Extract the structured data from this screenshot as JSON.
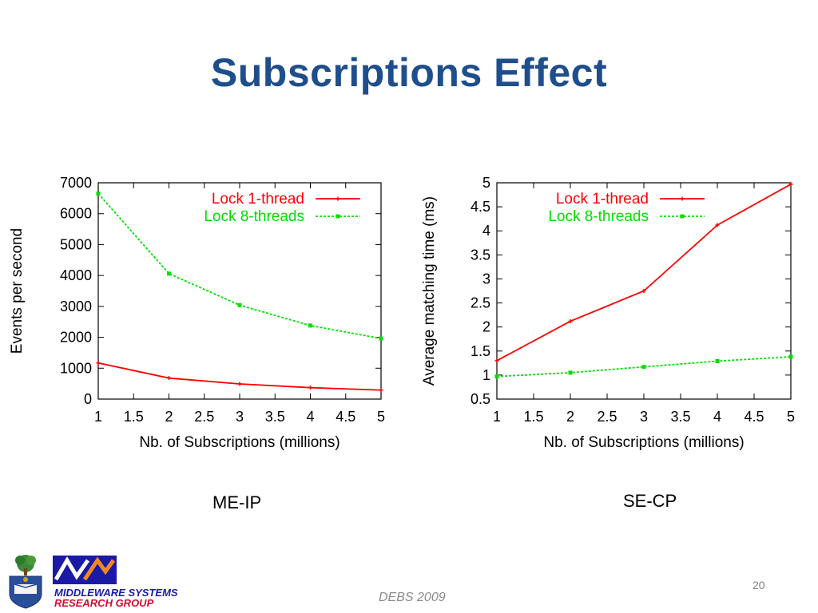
{
  "slide": {
    "title": "Subscriptions Effect",
    "caption_left": "ME-IP",
    "caption_right": "SE-CP",
    "footer": "DEBS 2009",
    "page_number": "20",
    "logo": {
      "line1": "MIDDLEWARE SYSTEMS",
      "line2": "RESEARCH GROUP"
    }
  },
  "colors": {
    "title": "#1f4e8c",
    "lock1": "#ff0000",
    "lock8": "#00e000"
  },
  "chart_data": [
    {
      "type": "line",
      "title": "",
      "xlabel": "Nb. of Subscriptions (millions)",
      "ylabel": "Events per second",
      "xlim": [
        1,
        5
      ],
      "ylim": [
        0,
        7000
      ],
      "xticks": [
        "1",
        "1.5",
        "2",
        "2.5",
        "3",
        "3.5",
        "4",
        "4.5",
        "5"
      ],
      "yticks": [
        "0",
        "1000",
        "2000",
        "3000",
        "4000",
        "5000",
        "6000",
        "7000"
      ],
      "x": [
        1,
        2,
        3,
        4,
        5
      ],
      "legend": "top-right",
      "grid": false,
      "series": [
        {
          "name": "Lock 1-thread",
          "values": [
            1170,
            680,
            490,
            370,
            290
          ]
        },
        {
          "name": "Lock 8-threads",
          "values": [
            6650,
            4060,
            3040,
            2380,
            1960
          ]
        }
      ]
    },
    {
      "type": "line",
      "title": "",
      "xlabel": "Nb. of Subscriptions (millions)",
      "ylabel": "Average matching time (ms)",
      "xlim": [
        1,
        5
      ],
      "ylim": [
        0.5,
        5
      ],
      "xticks": [
        "1",
        "1.5",
        "2",
        "2.5",
        "3",
        "3.5",
        "4",
        "4.5",
        "5"
      ],
      "yticks": [
        "0.5",
        "1",
        "1.5",
        "2",
        "2.5",
        "3",
        "3.5",
        "4",
        "4.5",
        "5"
      ],
      "x": [
        1,
        2,
        3,
        4,
        5
      ],
      "legend": "top-right",
      "grid": false,
      "series": [
        {
          "name": "Lock 1-thread",
          "values": [
            1.3,
            2.12,
            2.75,
            4.12,
            4.97
          ]
        },
        {
          "name": "Lock 8-threads",
          "values": [
            0.97,
            1.05,
            1.17,
            1.29,
            1.38
          ]
        }
      ]
    }
  ]
}
